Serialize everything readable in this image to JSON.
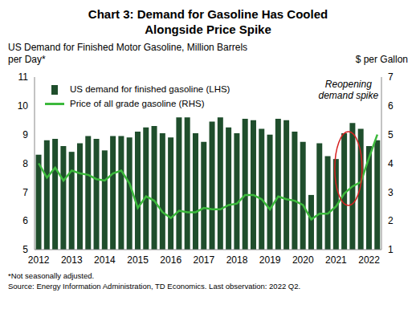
{
  "chart_data": {
    "type": "bar",
    "title": "Chart 3: Demand for Gasoline Has Cooled Alongside Price Spike",
    "ylabel": "US Demand for Finished Motor Gasoline, Million Barrels per Day*",
    "y2label": "$ per Gallon",
    "annotation": "Reopening demand spike",
    "notes": [
      "*Not seasonally adjusted.",
      "Source: Energy Information Administration, TD Economics. Last observation: 2022 Q2."
    ],
    "categories": [
      "2012",
      null,
      null,
      null,
      "2013",
      null,
      null,
      null,
      "2014",
      null,
      null,
      null,
      "2015",
      null,
      null,
      null,
      "2016",
      null,
      null,
      null,
      "2017",
      null,
      null,
      null,
      "2018",
      null,
      null,
      null,
      "2019",
      null,
      null,
      null,
      "2020",
      null,
      null,
      null,
      "2021",
      null,
      null,
      null,
      "2022",
      null
    ],
    "series": [
      {
        "name": "US demand for finished gasoline (LHS)",
        "type": "bar",
        "color": "#1f4e2c",
        "values": [
          8.3,
          8.8,
          8.85,
          8.6,
          8.4,
          8.7,
          8.95,
          8.85,
          8.45,
          8.95,
          8.95,
          8.9,
          9.1,
          9.25,
          9.3,
          9.05,
          8.9,
          9.6,
          9.6,
          9.05,
          8.75,
          9.45,
          9.6,
          9.25,
          9.05,
          9.55,
          9.5,
          9.2,
          9.0,
          9.55,
          9.5,
          9.1,
          8.75,
          6.9,
          8.7,
          8.25,
          8.15,
          9.05,
          9.4,
          9.2,
          8.6,
          8.8
        ]
      },
      {
        "name": "Price of all grade gasoline (RHS)",
        "type": "line",
        "axis": "y2",
        "color": "#3cb93c",
        "values": [
          4.0,
          3.5,
          3.85,
          3.4,
          3.75,
          3.65,
          3.6,
          3.45,
          3.4,
          3.65,
          3.75,
          3.3,
          2.45,
          2.85,
          2.7,
          2.3,
          2.1,
          2.35,
          2.3,
          2.3,
          2.45,
          2.4,
          2.4,
          2.55,
          2.6,
          2.9,
          2.9,
          2.75,
          2.4,
          2.85,
          2.75,
          2.7,
          2.55,
          2.05,
          2.25,
          2.25,
          2.5,
          2.95,
          3.2,
          3.35,
          4.2,
          5.0
        ]
      }
    ],
    "ylim": [
      5,
      11
    ],
    "yticks": [
      5,
      6,
      7,
      8,
      9,
      10,
      11
    ],
    "y2lim": [
      1,
      7
    ],
    "y2ticks": [
      1,
      2,
      3,
      4,
      5,
      6,
      7
    ],
    "grid": false,
    "legend": "upper left"
  }
}
